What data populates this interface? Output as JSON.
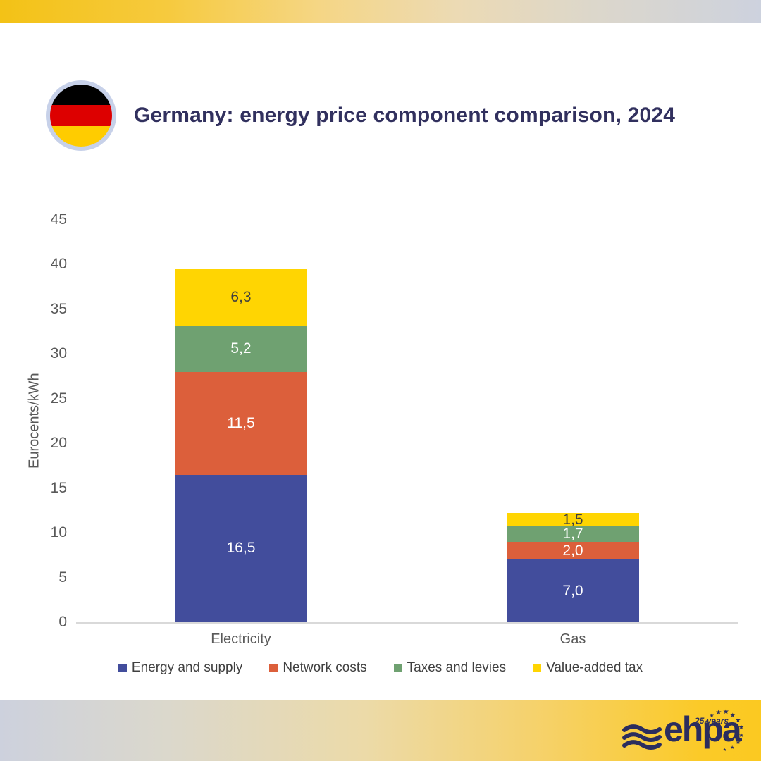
{
  "header": {
    "title": "Germany: energy price component comparison, 2024",
    "flag_icon": "germany-flag",
    "flag_colors": [
      "#000000",
      "#dd0000",
      "#ffcc00"
    ]
  },
  "chart_data": {
    "type": "bar",
    "stacked": true,
    "categories": [
      "Electricity",
      "Gas"
    ],
    "series": [
      {
        "name": "Energy and supply",
        "color": "#424d9c",
        "label_color": "#ffffff",
        "values": [
          16.5,
          7.0
        ],
        "labels": [
          "16,5",
          "7,0"
        ]
      },
      {
        "name": "Network costs",
        "color": "#dc5f3b",
        "label_color": "#ffffff",
        "values": [
          11.5,
          2.0
        ],
        "labels": [
          "11,5",
          "2,0"
        ]
      },
      {
        "name": "Taxes and levies",
        "color": "#6fa171",
        "label_color": "#ffffff",
        "values": [
          5.2,
          1.7
        ],
        "labels": [
          "5,2",
          "1,7"
        ]
      },
      {
        "name": "Value-added tax",
        "color": "#ffd502",
        "label_color": "#3f3f3f",
        "values": [
          6.3,
          1.5
        ],
        "labels": [
          "6,3",
          "1,5"
        ]
      }
    ],
    "totals": [
      39.5,
      12.2
    ],
    "title": "Germany: energy price component comparison, 2024",
    "xlabel": "",
    "ylabel": "Eurocents/kWh",
    "ylim": [
      0,
      45
    ],
    "ytick_step": 5,
    "grid": false,
    "legend_position": "bottom",
    "axis_color": "#d9d9d9",
    "tick_color": "#595959"
  },
  "footer": {
    "logo_text": "ehpa",
    "anniversary": "25 years"
  }
}
